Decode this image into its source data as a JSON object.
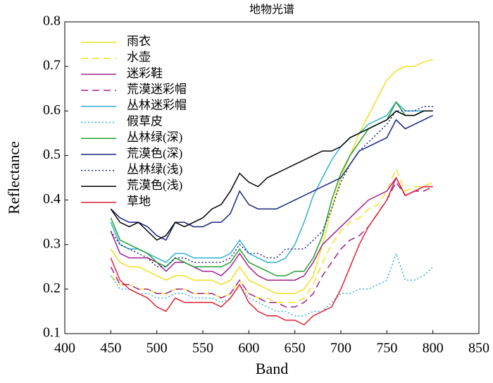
{
  "chart_data": {
    "type": "line",
    "title": "地物光谱",
    "xlabel": "Band",
    "ylabel": "Reflectance",
    "xlim": [
      400,
      850
    ],
    "xticks": [
      400,
      450,
      500,
      550,
      600,
      650,
      700,
      750,
      800,
      850
    ],
    "ylim": [
      0.1,
      0.8
    ],
    "yticks": [
      0.1,
      0.2,
      0.3,
      0.4,
      0.5,
      0.6,
      0.7,
      0.8
    ],
    "legend": "upper left",
    "grid": false,
    "x": [
      450,
      460,
      470,
      480,
      490,
      500,
      510,
      520,
      530,
      540,
      550,
      560,
      570,
      580,
      590,
      600,
      610,
      620,
      630,
      640,
      650,
      660,
      670,
      680,
      690,
      700,
      710,
      720,
      730,
      740,
      750,
      760,
      770,
      780,
      790,
      800
    ],
    "series": [
      {
        "name": "雨衣",
        "color": "#f0e020",
        "linestyle": "solid",
        "values": [
          0.29,
          0.26,
          0.25,
          0.25,
          0.24,
          0.23,
          0.22,
          0.23,
          0.23,
          0.22,
          0.22,
          0.22,
          0.21,
          0.22,
          0.25,
          0.22,
          0.21,
          0.2,
          0.19,
          0.19,
          0.19,
          0.2,
          0.23,
          0.3,
          0.38,
          0.45,
          0.5,
          0.55,
          0.59,
          0.63,
          0.67,
          0.69,
          0.7,
          0.7,
          0.71,
          0.715
        ]
      },
      {
        "name": "水壶",
        "color": "#f0e020",
        "linestyle": "dashed",
        "values": [
          0.23,
          0.21,
          0.21,
          0.2,
          0.2,
          0.19,
          0.19,
          0.2,
          0.2,
          0.19,
          0.19,
          0.19,
          0.18,
          0.19,
          0.22,
          0.19,
          0.18,
          0.18,
          0.17,
          0.17,
          0.17,
          0.18,
          0.21,
          0.26,
          0.3,
          0.33,
          0.35,
          0.36,
          0.38,
          0.39,
          0.42,
          0.47,
          0.42,
          0.43,
          0.43,
          0.44
        ]
      },
      {
        "name": "迷彩鞋",
        "color": "#a0208a",
        "linestyle": "solid",
        "values": [
          0.33,
          0.28,
          0.27,
          0.27,
          0.27,
          0.26,
          0.24,
          0.26,
          0.26,
          0.25,
          0.24,
          0.24,
          0.23,
          0.25,
          0.28,
          0.25,
          0.23,
          0.22,
          0.22,
          0.22,
          0.22,
          0.23,
          0.26,
          0.3,
          0.32,
          0.34,
          0.36,
          0.38,
          0.4,
          0.41,
          0.42,
          0.45,
          0.41,
          0.42,
          0.43,
          0.43
        ]
      },
      {
        "name": "荒漠迷彩帽",
        "color": "#a0208a",
        "linestyle": "dashed",
        "values": [
          0.25,
          0.21,
          0.21,
          0.2,
          0.2,
          0.19,
          0.19,
          0.2,
          0.2,
          0.19,
          0.19,
          0.19,
          0.18,
          0.19,
          0.22,
          0.19,
          0.18,
          0.17,
          0.17,
          0.16,
          0.16,
          0.17,
          0.19,
          0.23,
          0.26,
          0.29,
          0.31,
          0.32,
          0.34,
          0.37,
          0.4,
          0.44,
          0.41,
          0.42,
          0.42,
          0.43
        ]
      },
      {
        "name": "丛林迷彩帽",
        "color": "#30b0d0",
        "linestyle": "solid",
        "values": [
          0.35,
          0.3,
          0.29,
          0.29,
          0.28,
          0.27,
          0.26,
          0.28,
          0.28,
          0.27,
          0.27,
          0.27,
          0.27,
          0.28,
          0.31,
          0.28,
          0.27,
          0.26,
          0.26,
          0.27,
          0.3,
          0.35,
          0.41,
          0.45,
          0.49,
          0.52,
          0.54,
          0.55,
          0.57,
          0.58,
          0.59,
          0.62,
          0.6,
          0.6,
          0.6,
          0.6
        ]
      },
      {
        "name": "假草皮",
        "color": "#30b0d0",
        "linestyle": "dotted",
        "values": [
          0.23,
          0.2,
          0.2,
          0.19,
          0.19,
          0.18,
          0.18,
          0.19,
          0.19,
          0.18,
          0.18,
          0.18,
          0.17,
          0.18,
          0.21,
          0.18,
          0.17,
          0.16,
          0.15,
          0.15,
          0.14,
          0.14,
          0.15,
          0.15,
          0.17,
          0.19,
          0.19,
          0.2,
          0.2,
          0.21,
          0.22,
          0.28,
          0.22,
          0.22,
          0.23,
          0.25
        ]
      },
      {
        "name": "丛林绿(深)",
        "color": "#20a030",
        "linestyle": "solid",
        "values": [
          0.36,
          0.31,
          0.3,
          0.29,
          0.28,
          0.26,
          0.25,
          0.27,
          0.26,
          0.25,
          0.25,
          0.25,
          0.25,
          0.26,
          0.29,
          0.26,
          0.25,
          0.24,
          0.23,
          0.23,
          0.24,
          0.24,
          0.27,
          0.32,
          0.4,
          0.46,
          0.5,
          0.53,
          0.56,
          0.57,
          0.58,
          0.62,
          0.59,
          0.59,
          0.6,
          0.6
        ]
      },
      {
        "name": "荒漠色(深)",
        "color": "#1a237e",
        "linestyle": "solid",
        "values": [
          0.38,
          0.36,
          0.35,
          0.35,
          0.34,
          0.32,
          0.31,
          0.35,
          0.35,
          0.34,
          0.34,
          0.35,
          0.35,
          0.37,
          0.42,
          0.39,
          0.38,
          0.38,
          0.38,
          0.39,
          0.4,
          0.41,
          0.42,
          0.43,
          0.44,
          0.45,
          0.48,
          0.51,
          0.52,
          0.53,
          0.54,
          0.58,
          0.56,
          0.57,
          0.58,
          0.59
        ]
      },
      {
        "name": "丛林绿(浅)",
        "color": "#1a237e",
        "linestyle": "dotted",
        "values": [
          0.33,
          0.3,
          0.29,
          0.28,
          0.27,
          0.25,
          0.25,
          0.27,
          0.27,
          0.26,
          0.26,
          0.26,
          0.26,
          0.27,
          0.3,
          0.28,
          0.28,
          0.27,
          0.27,
          0.29,
          0.29,
          0.29,
          0.31,
          0.33,
          0.38,
          0.44,
          0.48,
          0.51,
          0.53,
          0.55,
          0.57,
          0.6,
          0.6,
          0.6,
          0.61,
          0.61
        ]
      },
      {
        "name": "荒漠色(浅)",
        "color": "#000000",
        "linestyle": "solid",
        "values": [
          0.38,
          0.35,
          0.34,
          0.35,
          0.33,
          0.31,
          0.32,
          0.35,
          0.34,
          0.35,
          0.36,
          0.38,
          0.39,
          0.42,
          0.46,
          0.44,
          0.43,
          0.45,
          0.46,
          0.47,
          0.48,
          0.49,
          0.5,
          0.51,
          0.51,
          0.52,
          0.54,
          0.55,
          0.56,
          0.57,
          0.58,
          0.6,
          0.59,
          0.59,
          0.6,
          0.6
        ]
      },
      {
        "name": "草地",
        "color": "#e02030",
        "linestyle": "solid",
        "values": [
          0.27,
          0.22,
          0.2,
          0.19,
          0.18,
          0.16,
          0.15,
          0.18,
          0.17,
          0.17,
          0.17,
          0.17,
          0.16,
          0.18,
          0.21,
          0.17,
          0.15,
          0.14,
          0.14,
          0.13,
          0.13,
          0.12,
          0.14,
          0.15,
          0.16,
          0.2,
          0.25,
          0.3,
          0.34,
          0.37,
          0.4,
          0.45,
          0.41,
          0.42,
          0.43,
          0.43
        ]
      }
    ]
  }
}
